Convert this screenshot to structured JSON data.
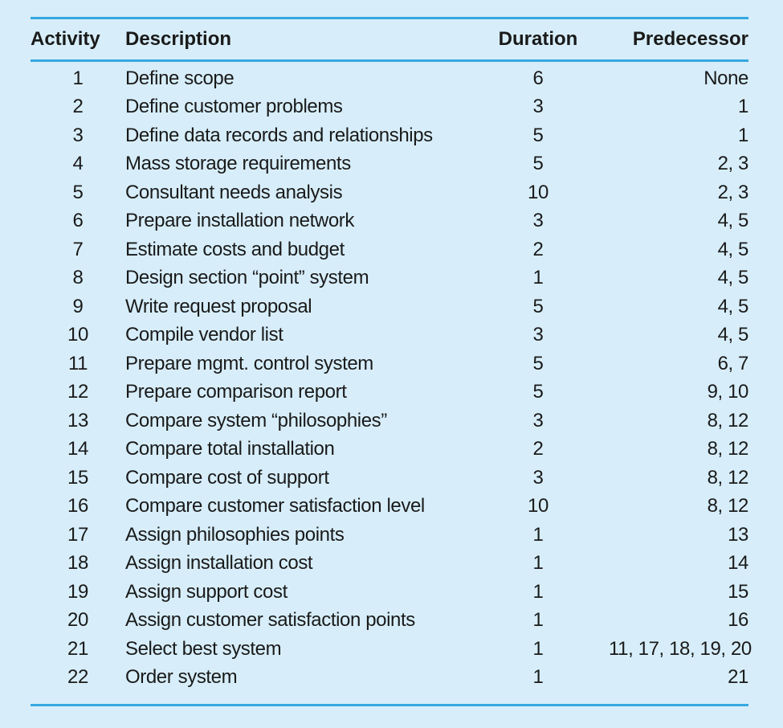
{
  "table": {
    "headers": {
      "activity": "Activity",
      "description": "Description",
      "duration": "Duration",
      "predecessor": "Predecessor"
    },
    "rows": [
      {
        "activity": "1",
        "description": "Define scope",
        "duration": "6",
        "predecessor": "None"
      },
      {
        "activity": "2",
        "description": "Define customer problems",
        "duration": "3",
        "predecessor": "1"
      },
      {
        "activity": "3",
        "description": "Define data records and relationships",
        "duration": "5",
        "predecessor": "1"
      },
      {
        "activity": "4",
        "description": "Mass storage requirements",
        "duration": "5",
        "predecessor": "2, 3"
      },
      {
        "activity": "5",
        "description": "Consultant needs analysis",
        "duration": "10",
        "predecessor": "2, 3"
      },
      {
        "activity": "6",
        "description": "Prepare installation network",
        "duration": "3",
        "predecessor": "4, 5"
      },
      {
        "activity": "7",
        "description": "Estimate costs and budget",
        "duration": "2",
        "predecessor": "4, 5"
      },
      {
        "activity": "8",
        "description": "Design section “point” system",
        "duration": "1",
        "predecessor": "4, 5"
      },
      {
        "activity": "9",
        "description": "Write request proposal",
        "duration": "5",
        "predecessor": "4, 5"
      },
      {
        "activity": "10",
        "description": "Compile vendor list",
        "duration": "3",
        "predecessor": "4, 5"
      },
      {
        "activity": "11",
        "description": "Prepare mgmt. control system",
        "duration": "5",
        "predecessor": "6, 7"
      },
      {
        "activity": "12",
        "description": "Prepare comparison report",
        "duration": "5",
        "predecessor": "9, 10"
      },
      {
        "activity": "13",
        "description": "Compare system “philosophies”",
        "duration": "3",
        "predecessor": "8, 12"
      },
      {
        "activity": "14",
        "description": "Compare total installation",
        "duration": "2",
        "predecessor": "8, 12"
      },
      {
        "activity": "15",
        "description": "Compare cost of support",
        "duration": "3",
        "predecessor": "8, 12"
      },
      {
        "activity": "16",
        "description": "Compare customer satisfaction level",
        "duration": "10",
        "predecessor": "8, 12"
      },
      {
        "activity": "17",
        "description": "Assign philosophies points",
        "duration": "1",
        "predecessor": "13"
      },
      {
        "activity": "18",
        "description": "Assign installation cost",
        "duration": "1",
        "predecessor": "14"
      },
      {
        "activity": "19",
        "description": "Assign support cost",
        "duration": "1",
        "predecessor": "15"
      },
      {
        "activity": "20",
        "description": "Assign customer satisfaction points",
        "duration": "1",
        "predecessor": "16"
      },
      {
        "activity": "21",
        "description": "Select best system",
        "duration": "1",
        "predecessor": "11, 17, 18, 19, 20"
      },
      {
        "activity": "22",
        "description": "Order system",
        "duration": "1",
        "predecessor": "21"
      }
    ]
  }
}
